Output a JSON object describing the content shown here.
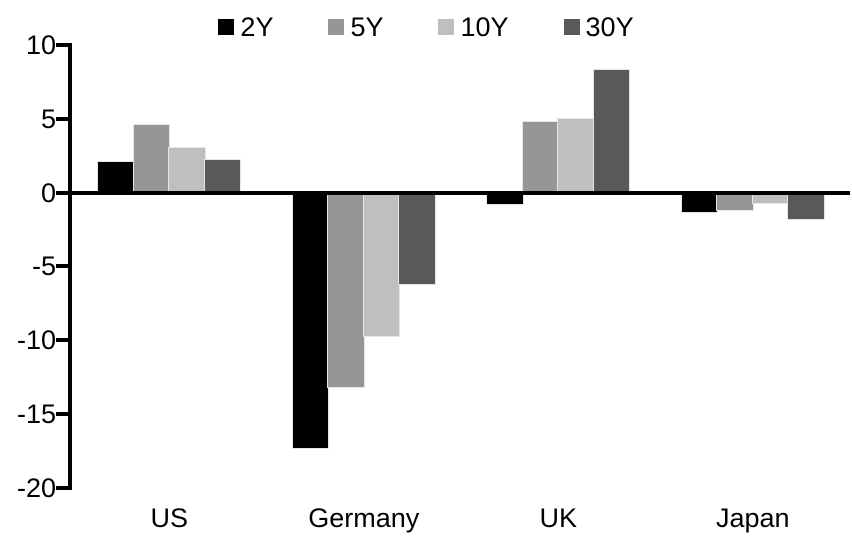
{
  "chart_data": {
    "type": "bar",
    "title": "",
    "xlabel": "",
    "ylabel": "",
    "categories": [
      "US",
      "Germany",
      "UK",
      "Japan"
    ],
    "series": [
      {
        "name": "2Y",
        "color": "#000000",
        "values": [
          2.1,
          -17.3,
          -0.8,
          -1.3
        ]
      },
      {
        "name": "5Y",
        "color": "#969696",
        "values": [
          4.6,
          -13.2,
          4.8,
          -1.2
        ]
      },
      {
        "name": "10Y",
        "color": "#bfbfbf",
        "values": [
          3.0,
          -9.7,
          5.0,
          -0.7
        ]
      },
      {
        "name": "30Y",
        "color": "#595959",
        "values": [
          2.2,
          -6.2,
          8.3,
          -1.8
        ]
      }
    ],
    "ylim": [
      -20,
      10
    ],
    "yticks": [
      10,
      5,
      0,
      -5,
      -10,
      -15,
      -20
    ],
    "grid": false,
    "legend_position": "top-center",
    "axis_color": "#000000",
    "background_color": "#ffffff"
  }
}
